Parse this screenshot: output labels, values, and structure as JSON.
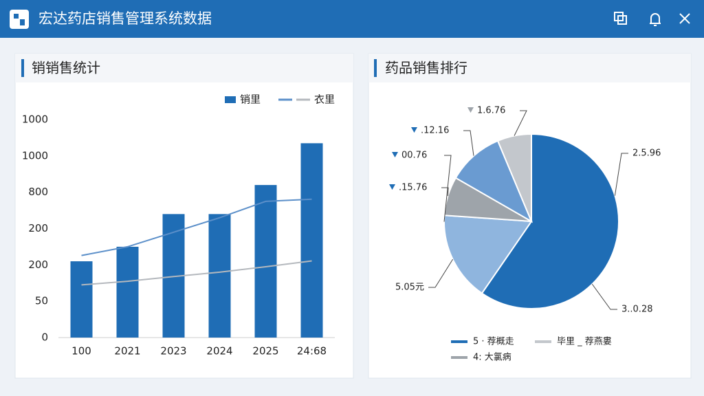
{
  "header": {
    "title": "宏达药店销售管理系统数据"
  },
  "panels": [
    {
      "title": "销销售统计",
      "chart": {
        "type": "bar",
        "categories": [
          "100",
          "2021",
          "2023",
          "2024",
          "2025",
          "24:68"
        ],
        "ytick_labels": [
          "0",
          "50",
          "200",
          "200",
          "800",
          "1000",
          "1000"
        ],
        "ylim": [
          0,
          6
        ],
        "yticks": [
          0,
          1,
          2,
          3,
          4,
          5,
          6
        ],
        "series": [
          {
            "name": "销里",
            "type": "bar",
            "color": "#1f6db5",
            "values": [
              2.1,
              2.5,
              3.4,
              3.4,
              4.2,
              5.35
            ]
          },
          {
            "type": "line",
            "color": "#5b8fc9",
            "values": [
              2.26,
              2.5,
              2.9,
              3.3,
              3.75,
              3.81
            ]
          },
          {
            "name": "衣里",
            "type": "line",
            "color": "#b4b8bd",
            "values": [
              1.45,
              1.55,
              1.68,
              1.8,
              1.95,
              2.11
            ]
          }
        ]
      }
    },
    {
      "title": "药品销售排行",
      "chart": {
        "type": "pie",
        "values": [
          59.6,
          16.5,
          7.2,
          10.4,
          6.3
        ],
        "colors": [
          "#1f6db5",
          "#8fb5de",
          "#9ea4aa",
          "#6a9bd1",
          "#c3c7cc"
        ],
        "annotations": [
          "2.5.96",
          "3..0.28",
          "5.05元",
          ".15.76",
          "00.76",
          ".12.16",
          "1.6.76"
        ],
        "legend": [
          "5 · 荐概走",
          "毕里 _ 荐燕婁",
          "4: 大氯病"
        ]
      }
    }
  ]
}
